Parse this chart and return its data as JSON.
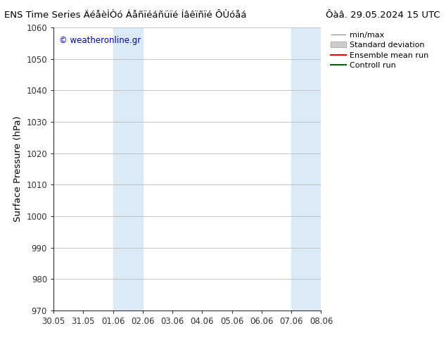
{
  "title_left": "ENS Time Series ÄéåèÌÒó Áåñïéáñüïé Íâêïñïé ÔÙóåá",
  "title_right": "Ôàâ. 29.05.2024 15 UTC",
  "ylabel": "Surface Pressure (hPa)",
  "ylim": [
    970,
    1060
  ],
  "yticks": [
    970,
    980,
    990,
    1000,
    1010,
    1020,
    1030,
    1040,
    1050,
    1060
  ],
  "xtick_labels": [
    "30.05",
    "31.05",
    "01.06",
    "02.06",
    "03.06",
    "04.06",
    "05.06",
    "06.06",
    "07.06",
    "08.06"
  ],
  "xtick_positions": [
    0,
    1,
    2,
    3,
    4,
    5,
    6,
    7,
    8,
    9
  ],
  "shaded_bands": [
    {
      "xmin": 2,
      "xmax": 3,
      "color": "#daeaf7"
    },
    {
      "xmin": 8,
      "xmax": 9,
      "color": "#daeaf7"
    }
  ],
  "legend_labels": [
    "min/max",
    "Standard deviation",
    "Ensemble mean run",
    "Controll run"
  ],
  "watermark": "© weatheronline.gr",
  "watermark_color": "#0000bb",
  "bg_color": "#ffffff",
  "plot_bg_color": "#ffffff",
  "grid_color": "#bbbbbb",
  "tick_label_fontsize": 8.5,
  "axis_label_fontsize": 9.5,
  "title_fontsize": 9.5
}
